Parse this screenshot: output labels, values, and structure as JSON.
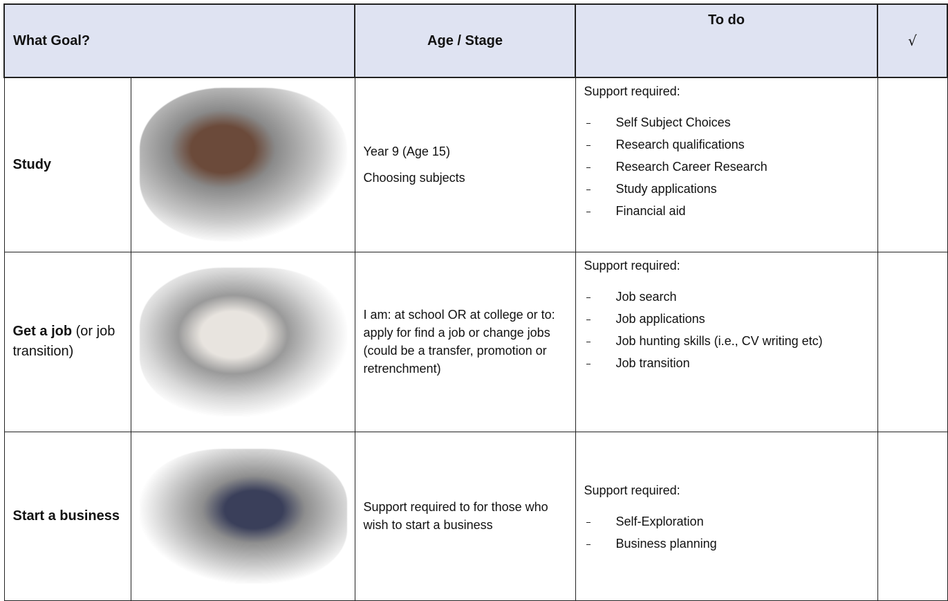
{
  "header": {
    "goal": "What Goal?",
    "stage": "Age / Stage",
    "todo": "To do",
    "check": "√"
  },
  "rows": [
    {
      "goal": "Study",
      "stage": [
        "Year 9 (Age 15)",
        "Choosing subjects"
      ],
      "support": "Support required:",
      "items": [
        "Self Subject Choices",
        "Research qualifications",
        "Research Career Research",
        "Study applications",
        "Financial aid"
      ]
    },
    {
      "goal": "Get a job",
      "goal_note": "(or job transition)",
      "stage": [
        "I am: at school OR at college or to: apply for find a job or change jobs (could be a transfer, promotion or retrenchment)"
      ],
      "support": "Support required:",
      "items": [
        "Job search",
        "Job applications",
        "Job hunting skills (i.e., CV writing etc)",
        "Job transition"
      ]
    },
    {
      "goal": "Start a business",
      "stage": [
        "Support required to for those who wish to start a business"
      ],
      "support": "Support required:",
      "items": [
        "Self-Exploration",
        "Business planning"
      ]
    }
  ]
}
